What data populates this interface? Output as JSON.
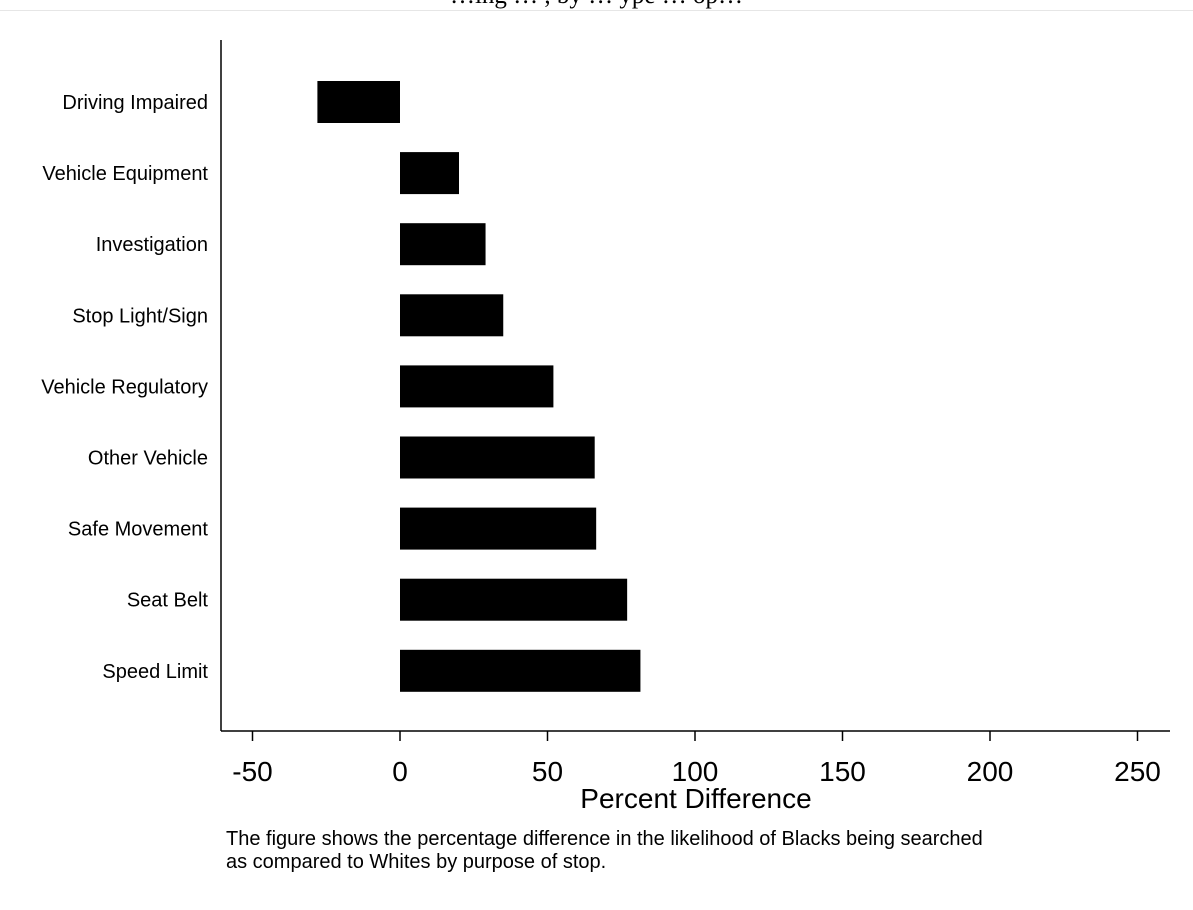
{
  "chart_data": {
    "type": "bar",
    "orientation": "horizontal",
    "title": "…ing … , by … ype … op…",
    "categories": [
      "Driving Impaired",
      "Vehicle Equipment",
      "Investigation",
      "Stop Light/Sign",
      "Vehicle Regulatory",
      "Other Vehicle",
      "Safe Movement",
      "Seat Belt",
      "Speed Limit"
    ],
    "values": [
      -28,
      20,
      29,
      35,
      52,
      66,
      66.5,
      77,
      81.5
    ],
    "xlabel": "Percent Difference",
    "ylabel": "",
    "xlim": [
      -60,
      260
    ],
    "xticks": [
      "-50",
      "0",
      "50",
      "100",
      "150",
      "200",
      "250"
    ],
    "bar_color": "#000000",
    "grid": false,
    "legend": "none"
  },
  "note": {
    "line1": "The figure shows the percentage difference in the likelihood of Blacks being searched",
    "line2": "as compared to Whites by purpose of stop."
  }
}
